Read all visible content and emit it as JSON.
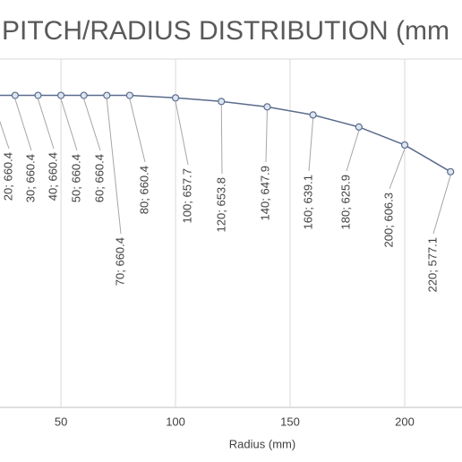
{
  "chart_data": {
    "type": "line",
    "title": "PITCH/RADIUS DISTRIBUTION (mm",
    "x_label": "Radius (mm)",
    "x": [
      20,
      30,
      40,
      50,
      60,
      70,
      80,
      100,
      120,
      140,
      160,
      180,
      200,
      220
    ],
    "series": [
      {
        "color": "#5a6b8c",
        "values": [
          660.4,
          660.4,
          660.4,
          660.4,
          660.4,
          660.4,
          660.4,
          657.7,
          653.8,
          647.9,
          639.1,
          625.9,
          606.3,
          577.1
        ],
        "value_labels": [
          "20; 660.4",
          "30; 660.4",
          "40; 660.4",
          "50; 660.4",
          "60; 660.4",
          "70; 660.4",
          "80; 660.4",
          "100; 657.7",
          "120; 653.8",
          "140; 647.9",
          "160; 639.1",
          "180; 625.9",
          "200; 606.3",
          "220; 577.1"
        ]
      }
    ],
    "xlim": [
      23.4,
      225
    ],
    "xticks": [
      50,
      100,
      150,
      200
    ],
    "ylim": [
      320,
      700
    ],
    "grid": true
  }
}
